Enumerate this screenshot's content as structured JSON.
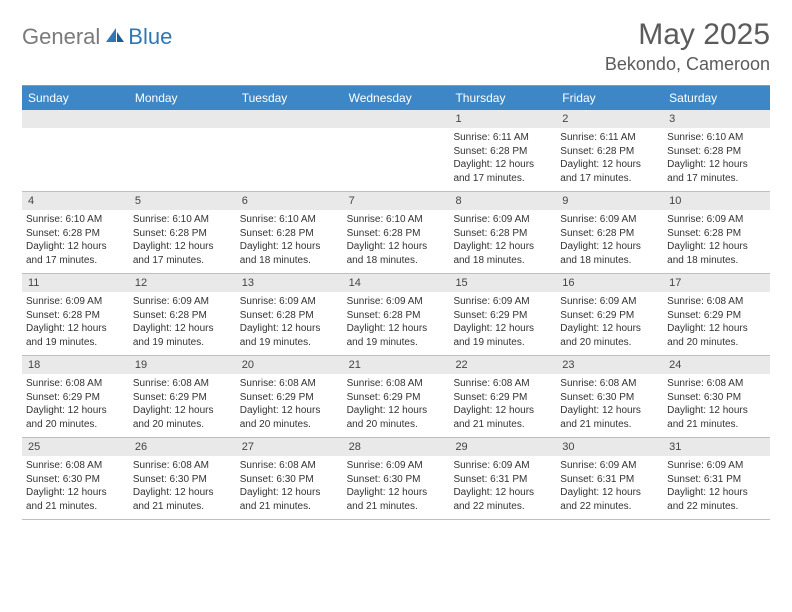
{
  "brand": {
    "part1": "General",
    "part2": "Blue"
  },
  "title": "May 2025",
  "location": "Bekondo, Cameroon",
  "colors": {
    "header_bar": "#3d87c7",
    "daynum_bg": "#e9e9e9",
    "logo_gray": "#7a7a7a",
    "logo_blue": "#2f78b7",
    "title_color": "#5b5b5b"
  },
  "dow": [
    "Sunday",
    "Monday",
    "Tuesday",
    "Wednesday",
    "Thursday",
    "Friday",
    "Saturday"
  ],
  "weeks": [
    [
      {
        "n": "",
        "sr": "",
        "ss": "",
        "d1": "",
        "d2": ""
      },
      {
        "n": "",
        "sr": "",
        "ss": "",
        "d1": "",
        "d2": ""
      },
      {
        "n": "",
        "sr": "",
        "ss": "",
        "d1": "",
        "d2": ""
      },
      {
        "n": "",
        "sr": "",
        "ss": "",
        "d1": "",
        "d2": ""
      },
      {
        "n": "1",
        "sr": "Sunrise: 6:11 AM",
        "ss": "Sunset: 6:28 PM",
        "d1": "Daylight: 12 hours",
        "d2": "and 17 minutes."
      },
      {
        "n": "2",
        "sr": "Sunrise: 6:11 AM",
        "ss": "Sunset: 6:28 PM",
        "d1": "Daylight: 12 hours",
        "d2": "and 17 minutes."
      },
      {
        "n": "3",
        "sr": "Sunrise: 6:10 AM",
        "ss": "Sunset: 6:28 PM",
        "d1": "Daylight: 12 hours",
        "d2": "and 17 minutes."
      }
    ],
    [
      {
        "n": "4",
        "sr": "Sunrise: 6:10 AM",
        "ss": "Sunset: 6:28 PM",
        "d1": "Daylight: 12 hours",
        "d2": "and 17 minutes."
      },
      {
        "n": "5",
        "sr": "Sunrise: 6:10 AM",
        "ss": "Sunset: 6:28 PM",
        "d1": "Daylight: 12 hours",
        "d2": "and 17 minutes."
      },
      {
        "n": "6",
        "sr": "Sunrise: 6:10 AM",
        "ss": "Sunset: 6:28 PM",
        "d1": "Daylight: 12 hours",
        "d2": "and 18 minutes."
      },
      {
        "n": "7",
        "sr": "Sunrise: 6:10 AM",
        "ss": "Sunset: 6:28 PM",
        "d1": "Daylight: 12 hours",
        "d2": "and 18 minutes."
      },
      {
        "n": "8",
        "sr": "Sunrise: 6:09 AM",
        "ss": "Sunset: 6:28 PM",
        "d1": "Daylight: 12 hours",
        "d2": "and 18 minutes."
      },
      {
        "n": "9",
        "sr": "Sunrise: 6:09 AM",
        "ss": "Sunset: 6:28 PM",
        "d1": "Daylight: 12 hours",
        "d2": "and 18 minutes."
      },
      {
        "n": "10",
        "sr": "Sunrise: 6:09 AM",
        "ss": "Sunset: 6:28 PM",
        "d1": "Daylight: 12 hours",
        "d2": "and 18 minutes."
      }
    ],
    [
      {
        "n": "11",
        "sr": "Sunrise: 6:09 AM",
        "ss": "Sunset: 6:28 PM",
        "d1": "Daylight: 12 hours",
        "d2": "and 19 minutes."
      },
      {
        "n": "12",
        "sr": "Sunrise: 6:09 AM",
        "ss": "Sunset: 6:28 PM",
        "d1": "Daylight: 12 hours",
        "d2": "and 19 minutes."
      },
      {
        "n": "13",
        "sr": "Sunrise: 6:09 AM",
        "ss": "Sunset: 6:28 PM",
        "d1": "Daylight: 12 hours",
        "d2": "and 19 minutes."
      },
      {
        "n": "14",
        "sr": "Sunrise: 6:09 AM",
        "ss": "Sunset: 6:28 PM",
        "d1": "Daylight: 12 hours",
        "d2": "and 19 minutes."
      },
      {
        "n": "15",
        "sr": "Sunrise: 6:09 AM",
        "ss": "Sunset: 6:29 PM",
        "d1": "Daylight: 12 hours",
        "d2": "and 19 minutes."
      },
      {
        "n": "16",
        "sr": "Sunrise: 6:09 AM",
        "ss": "Sunset: 6:29 PM",
        "d1": "Daylight: 12 hours",
        "d2": "and 20 minutes."
      },
      {
        "n": "17",
        "sr": "Sunrise: 6:08 AM",
        "ss": "Sunset: 6:29 PM",
        "d1": "Daylight: 12 hours",
        "d2": "and 20 minutes."
      }
    ],
    [
      {
        "n": "18",
        "sr": "Sunrise: 6:08 AM",
        "ss": "Sunset: 6:29 PM",
        "d1": "Daylight: 12 hours",
        "d2": "and 20 minutes."
      },
      {
        "n": "19",
        "sr": "Sunrise: 6:08 AM",
        "ss": "Sunset: 6:29 PM",
        "d1": "Daylight: 12 hours",
        "d2": "and 20 minutes."
      },
      {
        "n": "20",
        "sr": "Sunrise: 6:08 AM",
        "ss": "Sunset: 6:29 PM",
        "d1": "Daylight: 12 hours",
        "d2": "and 20 minutes."
      },
      {
        "n": "21",
        "sr": "Sunrise: 6:08 AM",
        "ss": "Sunset: 6:29 PM",
        "d1": "Daylight: 12 hours",
        "d2": "and 20 minutes."
      },
      {
        "n": "22",
        "sr": "Sunrise: 6:08 AM",
        "ss": "Sunset: 6:29 PM",
        "d1": "Daylight: 12 hours",
        "d2": "and 21 minutes."
      },
      {
        "n": "23",
        "sr": "Sunrise: 6:08 AM",
        "ss": "Sunset: 6:30 PM",
        "d1": "Daylight: 12 hours",
        "d2": "and 21 minutes."
      },
      {
        "n": "24",
        "sr": "Sunrise: 6:08 AM",
        "ss": "Sunset: 6:30 PM",
        "d1": "Daylight: 12 hours",
        "d2": "and 21 minutes."
      }
    ],
    [
      {
        "n": "25",
        "sr": "Sunrise: 6:08 AM",
        "ss": "Sunset: 6:30 PM",
        "d1": "Daylight: 12 hours",
        "d2": "and 21 minutes."
      },
      {
        "n": "26",
        "sr": "Sunrise: 6:08 AM",
        "ss": "Sunset: 6:30 PM",
        "d1": "Daylight: 12 hours",
        "d2": "and 21 minutes."
      },
      {
        "n": "27",
        "sr": "Sunrise: 6:08 AM",
        "ss": "Sunset: 6:30 PM",
        "d1": "Daylight: 12 hours",
        "d2": "and 21 minutes."
      },
      {
        "n": "28",
        "sr": "Sunrise: 6:09 AM",
        "ss": "Sunset: 6:30 PM",
        "d1": "Daylight: 12 hours",
        "d2": "and 21 minutes."
      },
      {
        "n": "29",
        "sr": "Sunrise: 6:09 AM",
        "ss": "Sunset: 6:31 PM",
        "d1": "Daylight: 12 hours",
        "d2": "and 22 minutes."
      },
      {
        "n": "30",
        "sr": "Sunrise: 6:09 AM",
        "ss": "Sunset: 6:31 PM",
        "d1": "Daylight: 12 hours",
        "d2": "and 22 minutes."
      },
      {
        "n": "31",
        "sr": "Sunrise: 6:09 AM",
        "ss": "Sunset: 6:31 PM",
        "d1": "Daylight: 12 hours",
        "d2": "and 22 minutes."
      }
    ]
  ]
}
